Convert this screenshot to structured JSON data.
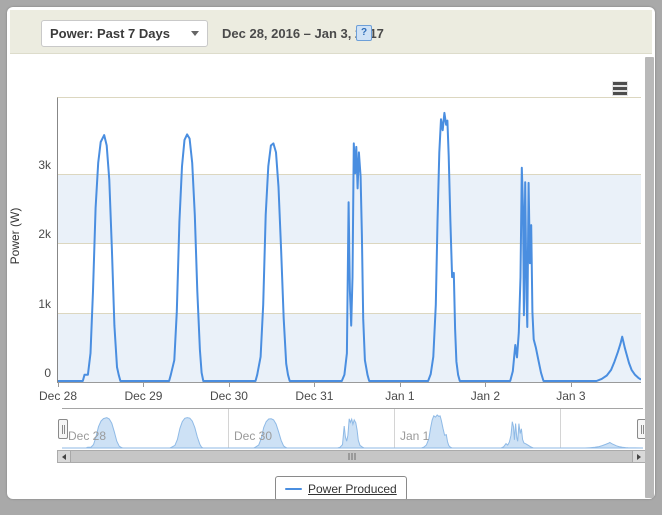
{
  "header": {
    "dropdown_value": "Power: Past 7 Days",
    "date_range": "Dec 28, 2016 – Jan 3, 2017",
    "help_label": "?"
  },
  "legend": {
    "label": "Power Produced"
  },
  "colors": {
    "series_line": "#4a8ee0",
    "navigator_fill": "#cde1f5",
    "navigator_line": "#8fbae6",
    "plot_band": "#eaf1f9",
    "gridline": "#dcd7c0",
    "topbar_background": "#ecece0"
  },
  "chart_data": {
    "type": "line",
    "title": "",
    "ylabel": "Power (W)",
    "xlabel": "",
    "y_ticks": [
      "0",
      "1k",
      "2k",
      "3k"
    ],
    "y_tick_values": [
      0,
      1000,
      2000,
      3000
    ],
    "x_ticks": [
      "Dec 28",
      "Dec 29",
      "Dec 30",
      "Dec 31",
      "Jan 1",
      "Jan 2",
      "Jan 3"
    ],
    "ylim": [
      0,
      4100
    ],
    "xlim_days": [
      0,
      6.82
    ],
    "bands_w": [
      [
        0,
        1000
      ],
      [
        2000,
        3000
      ]
    ],
    "grid": true,
    "legend_position": "bottom",
    "series": [
      {
        "name": "Power Produced",
        "units": "W",
        "points": [
          [
            0.0,
            0
          ],
          [
            0.29,
            0
          ],
          [
            0.31,
            90
          ],
          [
            0.35,
            90
          ],
          [
            0.38,
            400
          ],
          [
            0.41,
            1300
          ],
          [
            0.44,
            2500
          ],
          [
            0.47,
            3150
          ],
          [
            0.5,
            3450
          ],
          [
            0.54,
            3550
          ],
          [
            0.57,
            3400
          ],
          [
            0.6,
            2900
          ],
          [
            0.63,
            1900
          ],
          [
            0.66,
            800
          ],
          [
            0.69,
            200
          ],
          [
            0.71,
            90
          ],
          [
            0.73,
            0
          ],
          [
            1.3,
            0
          ],
          [
            1.32,
            90
          ],
          [
            1.36,
            300
          ],
          [
            1.39,
            1000
          ],
          [
            1.42,
            2300
          ],
          [
            1.45,
            3100
          ],
          [
            1.48,
            3480
          ],
          [
            1.51,
            3560
          ],
          [
            1.54,
            3500
          ],
          [
            1.57,
            3150
          ],
          [
            1.6,
            2400
          ],
          [
            1.63,
            1300
          ],
          [
            1.66,
            450
          ],
          [
            1.68,
            120
          ],
          [
            1.7,
            0
          ],
          [
            2.31,
            0
          ],
          [
            2.33,
            90
          ],
          [
            2.37,
            350
          ],
          [
            2.4,
            1100
          ],
          [
            2.43,
            2400
          ],
          [
            2.46,
            3100
          ],
          [
            2.49,
            3400
          ],
          [
            2.52,
            3430
          ],
          [
            2.55,
            3300
          ],
          [
            2.58,
            2800
          ],
          [
            2.61,
            1900
          ],
          [
            2.64,
            900
          ],
          [
            2.67,
            250
          ],
          [
            2.69,
            90
          ],
          [
            2.71,
            0
          ],
          [
            3.32,
            0
          ],
          [
            3.35,
            90
          ],
          [
            3.38,
            400
          ],
          [
            3.4,
            2580
          ],
          [
            3.415,
            1300
          ],
          [
            3.43,
            800
          ],
          [
            3.445,
            1500
          ],
          [
            3.46,
            3430
          ],
          [
            3.475,
            3000
          ],
          [
            3.49,
            3380
          ],
          [
            3.505,
            2780
          ],
          [
            3.52,
            3300
          ],
          [
            3.54,
            2950
          ],
          [
            3.555,
            2100
          ],
          [
            3.57,
            900
          ],
          [
            3.59,
            300
          ],
          [
            3.62,
            90
          ],
          [
            3.64,
            0
          ],
          [
            4.33,
            0
          ],
          [
            4.36,
            100
          ],
          [
            4.39,
            350
          ],
          [
            4.42,
            1100
          ],
          [
            4.44,
            2300
          ],
          [
            4.46,
            3300
          ],
          [
            4.48,
            3780
          ],
          [
            4.5,
            3620
          ],
          [
            4.52,
            3870
          ],
          [
            4.54,
            3700
          ],
          [
            4.555,
            3760
          ],
          [
            4.57,
            3250
          ],
          [
            4.59,
            2300
          ],
          [
            4.61,
            1500
          ],
          [
            4.63,
            1560
          ],
          [
            4.645,
            750
          ],
          [
            4.66,
            280
          ],
          [
            4.68,
            90
          ],
          [
            4.7,
            0
          ],
          [
            5.29,
            0
          ],
          [
            5.32,
            140
          ],
          [
            5.35,
            520
          ],
          [
            5.37,
            340
          ],
          [
            5.39,
            700
          ],
          [
            5.41,
            1500
          ],
          [
            5.425,
            3080
          ],
          [
            5.44,
            2500
          ],
          [
            5.45,
            950
          ],
          [
            5.465,
            2870
          ],
          [
            5.48,
            1200
          ],
          [
            5.49,
            780
          ],
          [
            5.505,
            2860
          ],
          [
            5.52,
            1700
          ],
          [
            5.535,
            2250
          ],
          [
            5.55,
            1000
          ],
          [
            5.565,
            600
          ],
          [
            5.59,
            480
          ],
          [
            5.62,
            300
          ],
          [
            5.65,
            120
          ],
          [
            5.68,
            0
          ],
          [
            6.3,
            0
          ],
          [
            6.36,
            30
          ],
          [
            6.42,
            80
          ],
          [
            6.47,
            160
          ],
          [
            6.51,
            280
          ],
          [
            6.55,
            420
          ],
          [
            6.58,
            540
          ],
          [
            6.6,
            640
          ],
          [
            6.615,
            560
          ],
          [
            6.63,
            480
          ],
          [
            6.65,
            390
          ],
          [
            6.68,
            260
          ],
          [
            6.71,
            160
          ],
          [
            6.75,
            90
          ],
          [
            6.79,
            45
          ],
          [
            6.82,
            20
          ]
        ]
      }
    ]
  },
  "navigator": {
    "labels": [
      {
        "text": "Dec 28",
        "day": 0
      },
      {
        "text": "Dec 30",
        "day": 2
      },
      {
        "text": "Jan 1",
        "day": 4
      }
    ],
    "separator_days": [
      2,
      4,
      6
    ],
    "range_days": 7
  }
}
